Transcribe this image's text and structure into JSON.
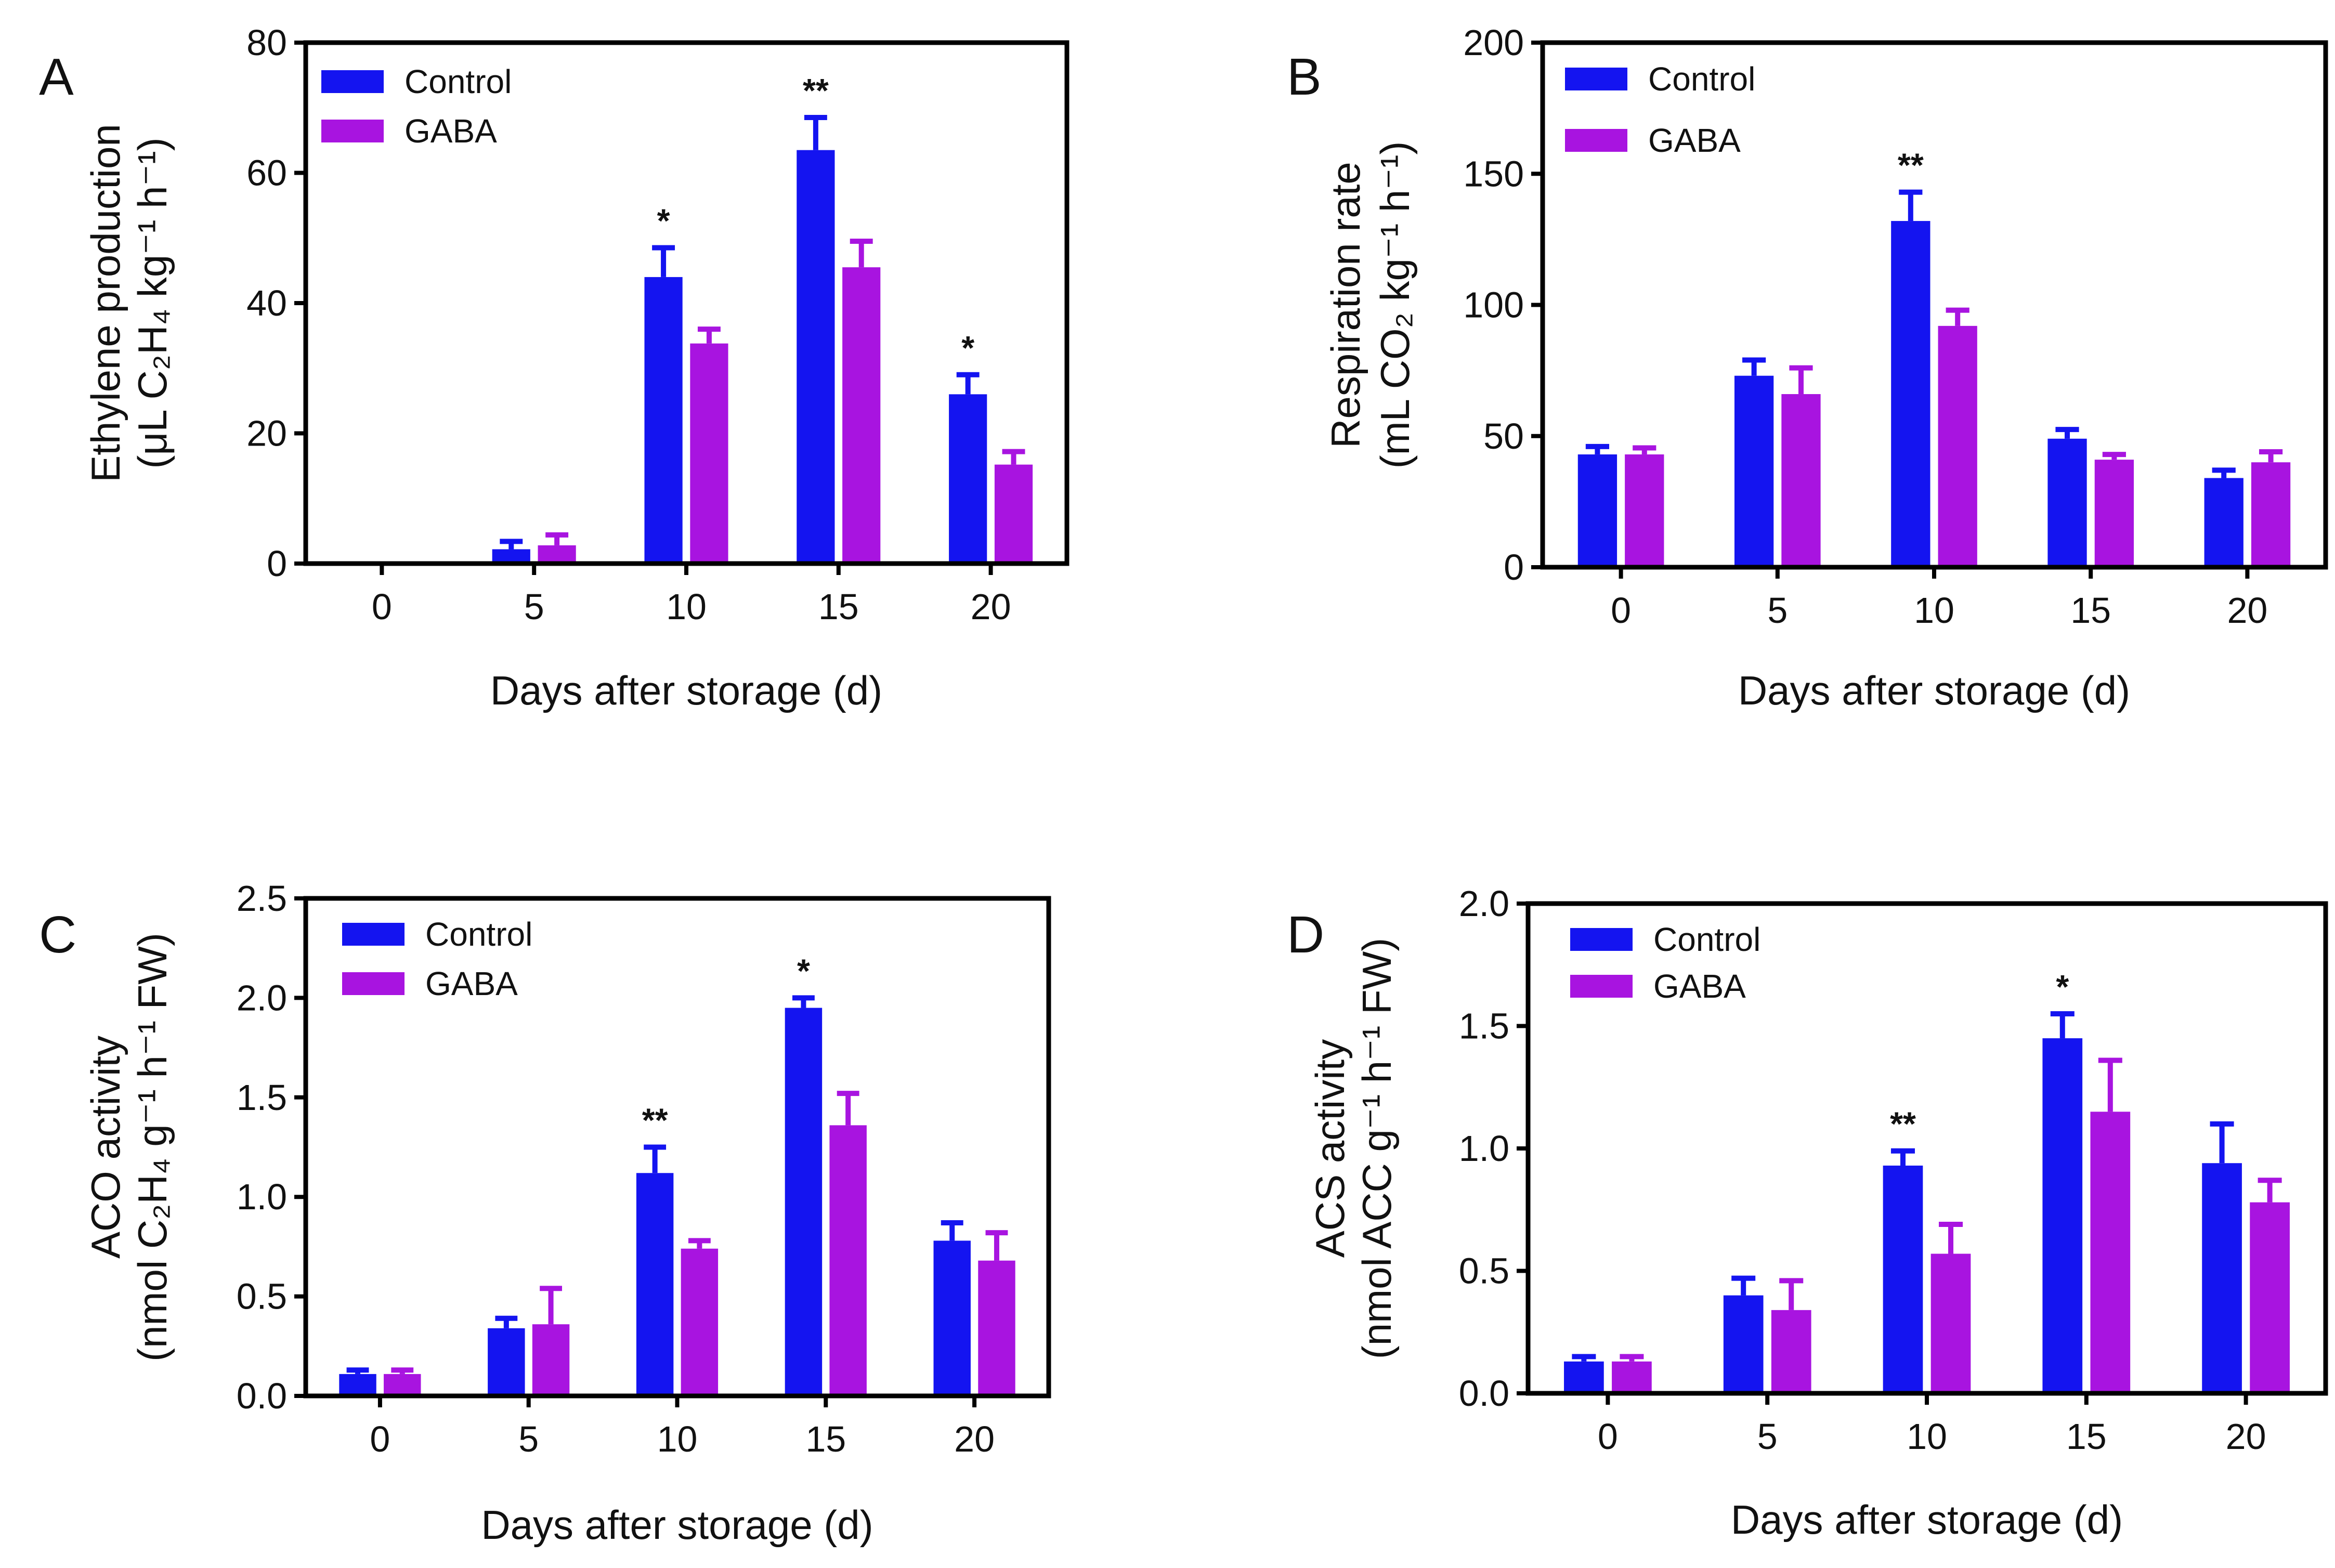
{
  "colors": {
    "control": "#1414f0",
    "gaba": "#a814e0",
    "axis": "#000000"
  },
  "chart_data": [
    {
      "type": "bar",
      "panel": "A",
      "categories": [
        "0",
        "5",
        "10",
        "15",
        "20"
      ],
      "xlabel": "Days after storage (d)",
      "ylabel_lines": [
        "Ethylene production",
        "(μL C₂H₄ kg⁻¹ h⁻¹)"
      ],
      "ylim": [
        0,
        80
      ],
      "yticks": [
        0,
        20,
        40,
        60,
        80
      ],
      "legend": "top-left",
      "series": [
        {
          "name": "Control",
          "values": [
            0,
            2.2,
            44,
            63.5,
            26
          ],
          "errors": [
            0,
            1.2,
            4.5,
            5,
            3
          ]
        },
        {
          "name": "GABA",
          "values": [
            0,
            2.8,
            33.8,
            45.5,
            15.2
          ],
          "errors": [
            0,
            1.6,
            2.2,
            4,
            2
          ]
        }
      ],
      "significance": [
        {
          "category": "10",
          "label": "*"
        },
        {
          "category": "15",
          "label": "**"
        },
        {
          "category": "20",
          "label": "*"
        }
      ]
    },
    {
      "type": "bar",
      "panel": "B",
      "categories": [
        "0",
        "5",
        "10",
        "15",
        "20"
      ],
      "xlabel": "Days after storage (d)",
      "ylabel_lines": [
        "Respiration rate",
        "(mL CO₂ kg⁻¹ h⁻¹)"
      ],
      "ylim": [
        0,
        200
      ],
      "yticks": [
        0,
        50,
        100,
        150,
        200
      ],
      "legend": "top-left",
      "series": [
        {
          "name": "Control",
          "values": [
            43,
            73,
            132,
            49,
            34
          ],
          "errors": [
            3,
            6,
            11,
            3.5,
            3
          ]
        },
        {
          "name": "GABA",
          "values": [
            43,
            66,
            92,
            41,
            40
          ],
          "errors": [
            2.5,
            10,
            6,
            2,
            4
          ]
        }
      ],
      "significance": [
        {
          "category": "10",
          "label": "**"
        }
      ]
    },
    {
      "type": "bar",
      "panel": "C",
      "categories": [
        "0",
        "5",
        "10",
        "15",
        "20"
      ],
      "xlabel": "Days after storage (d)",
      "ylabel_lines": [
        "ACO activity",
        "(nmol C₂H₄ g⁻¹ h⁻¹ FW)"
      ],
      "ylim": [
        0,
        2.5
      ],
      "yticks": [
        0.0,
        0.5,
        1.0,
        1.5,
        2.0,
        2.5
      ],
      "legend": "top-left",
      "series": [
        {
          "name": "Control",
          "values": [
            0.11,
            0.34,
            1.12,
            1.95,
            0.78
          ],
          "errors": [
            0.02,
            0.05,
            0.13,
            0.05,
            0.09
          ]
        },
        {
          "name": "GABA",
          "values": [
            0.11,
            0.36,
            0.74,
            1.36,
            0.68
          ],
          "errors": [
            0.02,
            0.18,
            0.04,
            0.16,
            0.14
          ]
        }
      ],
      "significance": [
        {
          "category": "10",
          "label": "**"
        },
        {
          "category": "15",
          "label": "*"
        }
      ]
    },
    {
      "type": "bar",
      "panel": "D",
      "categories": [
        "0",
        "5",
        "10",
        "15",
        "20"
      ],
      "xlabel": "Days after storage (d)",
      "ylabel_lines": [
        "ACS activity",
        "(nmol ACC g⁻¹ h⁻¹ FW)"
      ],
      "ylim": [
        0,
        2.0
      ],
      "yticks": [
        0.0,
        0.5,
        1.0,
        1.5,
        2.0
      ],
      "legend": "top-left",
      "series": [
        {
          "name": "Control",
          "values": [
            0.13,
            0.4,
            0.93,
            1.45,
            0.94
          ],
          "errors": [
            0.02,
            0.07,
            0.06,
            0.1,
            0.16
          ]
        },
        {
          "name": "GABA",
          "values": [
            0.13,
            0.34,
            0.57,
            1.15,
            0.78
          ],
          "errors": [
            0.02,
            0.12,
            0.12,
            0.21,
            0.09
          ]
        }
      ],
      "significance": [
        {
          "category": "10",
          "label": "**"
        },
        {
          "category": "15",
          "label": "*"
        }
      ]
    }
  ]
}
